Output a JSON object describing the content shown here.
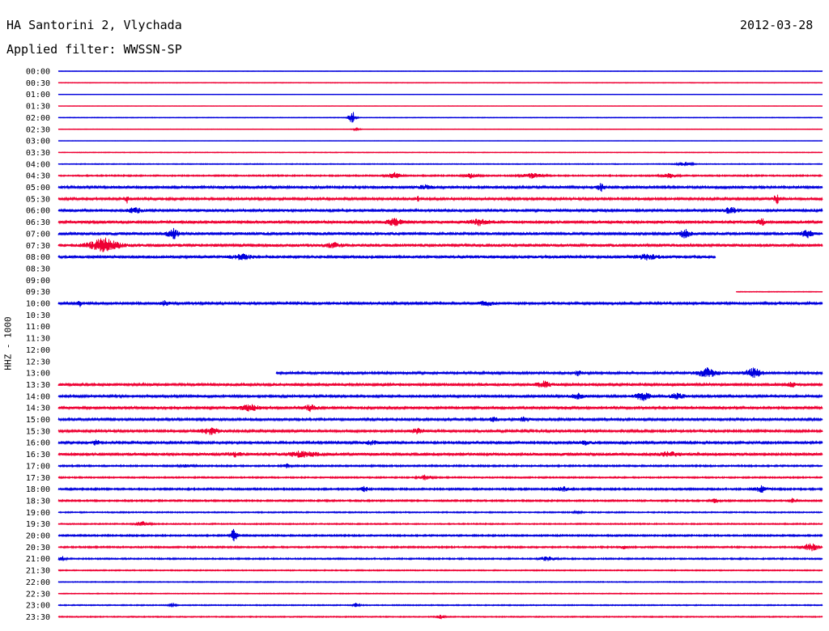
{
  "header": {
    "station": "HA Santorini 2, Vlychada",
    "date": "2012-03-28",
    "filter": "Applied filter: WWSSN-SP"
  },
  "channel_label": "HHZ - 1000",
  "colors": {
    "even_hour": "#0000dd",
    "half_hour": "#ee0033",
    "text": "#000000"
  },
  "chart_data": {
    "type": "line",
    "subtype": "helicorder",
    "x_span_minutes": 30,
    "grid": false,
    "rows": [
      {
        "label": "00:00",
        "amplitude": 0.25
      },
      {
        "label": "00:30",
        "amplitude": 0.35
      },
      {
        "label": "01:00",
        "amplitude": 0.2
      },
      {
        "label": "01:30",
        "amplitude": 0.2
      },
      {
        "label": "02:00",
        "amplitude": 0.35,
        "events": [
          {
            "pos": 0.385,
            "amp": 9,
            "w": 0.01
          }
        ]
      },
      {
        "label": "02:30",
        "amplitude": 0.3,
        "events": [
          {
            "pos": 0.39,
            "amp": 2,
            "w": 0.01
          }
        ]
      },
      {
        "label": "03:00",
        "amplitude": 0.2
      },
      {
        "label": "03:30",
        "amplitude": 0.4
      },
      {
        "label": "04:00",
        "amplitude": 0.5,
        "events": [
          {
            "pos": 0.82,
            "amp": 2.5,
            "w": 0.02
          }
        ]
      },
      {
        "label": "04:30",
        "amplitude": 0.8,
        "events": [
          {
            "pos": 0.44,
            "amp": 4,
            "w": 0.02
          },
          {
            "pos": 0.54,
            "amp": 3,
            "w": 0.02
          },
          {
            "pos": 0.62,
            "amp": 3,
            "w": 0.03
          },
          {
            "pos": 0.8,
            "amp": 3,
            "w": 0.02
          }
        ]
      },
      {
        "label": "05:00",
        "amplitude": 1.4,
        "events": [
          {
            "pos": 0.71,
            "amp": 5,
            "w": 0.01
          },
          {
            "pos": 0.48,
            "amp": 2.5,
            "w": 0.02
          }
        ]
      },
      {
        "label": "05:30",
        "amplitude": 1.3,
        "events": [
          {
            "pos": 0.09,
            "amp": 5,
            "w": 0.004
          },
          {
            "pos": 0.47,
            "amp": 4,
            "w": 0.005
          },
          {
            "pos": 0.94,
            "amp": 6,
            "w": 0.01
          }
        ]
      },
      {
        "label": "06:00",
        "amplitude": 1.5,
        "events": [
          {
            "pos": 0.1,
            "amp": 4,
            "w": 0.02
          },
          {
            "pos": 0.88,
            "amp": 4,
            "w": 0.02
          }
        ]
      },
      {
        "label": "06:30",
        "amplitude": 1.6,
        "events": [
          {
            "pos": 0.44,
            "amp": 5,
            "w": 0.02
          },
          {
            "pos": 0.55,
            "amp": 4,
            "w": 0.03
          },
          {
            "pos": 0.92,
            "amp": 5,
            "w": 0.01
          }
        ]
      },
      {
        "label": "07:00",
        "amplitude": 1.7,
        "events": [
          {
            "pos": 0.15,
            "amp": 7,
            "w": 0.015
          },
          {
            "pos": 0.82,
            "amp": 5,
            "w": 0.015
          },
          {
            "pos": 0.98,
            "amp": 5,
            "w": 0.015
          }
        ]
      },
      {
        "label": "07:30",
        "amplitude": 1.8,
        "events": [
          {
            "pos": 0.06,
            "amp": 9,
            "w": 0.04
          },
          {
            "pos": 0.36,
            "amp": 3,
            "w": 0.02
          }
        ]
      },
      {
        "label": "08:00",
        "amplitude": 1.7,
        "end": 0.86,
        "events": [
          {
            "pos": 0.24,
            "amp": 3,
            "w": 0.03
          },
          {
            "pos": 0.77,
            "amp": 3,
            "w": 0.03
          }
        ]
      },
      {
        "label": "08:30",
        "amplitude": 0,
        "start": 0,
        "end": 0
      },
      {
        "label": "09:00",
        "amplitude": 0,
        "start": 0,
        "end": 0
      },
      {
        "label": "09:30",
        "amplitude": 0.4,
        "start": 0.887
      },
      {
        "label": "10:00",
        "amplitude": 1.4,
        "events": [
          {
            "pos": 0.028,
            "amp": 6,
            "w": 0.005
          },
          {
            "pos": 0.14,
            "amp": 4,
            "w": 0.01
          },
          {
            "pos": 0.56,
            "amp": 3,
            "w": 0.02
          }
        ]
      },
      {
        "label": "10:30",
        "amplitude": 0,
        "start": 0,
        "end": 0
      },
      {
        "label": "11:00",
        "amplitude": 0,
        "start": 0,
        "end": 0
      },
      {
        "label": "11:30",
        "amplitude": 0,
        "start": 0,
        "end": 0
      },
      {
        "label": "12:00",
        "amplitude": 0,
        "start": 0,
        "end": 0
      },
      {
        "label": "12:30",
        "amplitude": 0,
        "start": 0,
        "end": 0
      },
      {
        "label": "13:00",
        "amplitude": 1.4,
        "start": 0.285,
        "events": [
          {
            "pos": 0.85,
            "amp": 6,
            "w": 0.03
          },
          {
            "pos": 0.91,
            "amp": 6,
            "w": 0.025
          },
          {
            "pos": 0.68,
            "amp": 3,
            "w": 0.01
          }
        ]
      },
      {
        "label": "13:30",
        "amplitude": 1.5,
        "events": [
          {
            "pos": 0.635,
            "amp": 4,
            "w": 0.02
          },
          {
            "pos": 0.96,
            "amp": 4,
            "w": 0.01
          }
        ]
      },
      {
        "label": "14:00",
        "amplitude": 1.4,
        "events": [
          {
            "pos": 0.765,
            "amp": 6,
            "w": 0.02
          },
          {
            "pos": 0.81,
            "amp": 4,
            "w": 0.02
          },
          {
            "pos": 0.68,
            "amp": 3,
            "w": 0.02
          }
        ]
      },
      {
        "label": "14:30",
        "amplitude": 1.4,
        "events": [
          {
            "pos": 0.25,
            "amp": 4,
            "w": 0.03
          },
          {
            "pos": 0.33,
            "amp": 4,
            "w": 0.02
          }
        ]
      },
      {
        "label": "15:00",
        "amplitude": 1.3,
        "events": [
          {
            "pos": 0.57,
            "amp": 4,
            "w": 0.01
          },
          {
            "pos": 0.61,
            "amp": 3,
            "w": 0.015
          }
        ]
      },
      {
        "label": "15:30",
        "amplitude": 1.3,
        "events": [
          {
            "pos": 0.2,
            "amp": 4,
            "w": 0.03
          },
          {
            "pos": 0.47,
            "amp": 3,
            "w": 0.02
          }
        ]
      },
      {
        "label": "16:00",
        "amplitude": 1.3,
        "events": [
          {
            "pos": 0.05,
            "amp": 4,
            "w": 0.01
          },
          {
            "pos": 0.41,
            "amp": 3,
            "w": 0.02
          },
          {
            "pos": 0.69,
            "amp": 3,
            "w": 0.02
          }
        ]
      },
      {
        "label": "16:30",
        "amplitude": 1.6,
        "events": [
          {
            "pos": 0.23,
            "amp": 3,
            "w": 0.02
          },
          {
            "pos": 0.32,
            "amp": 4,
            "w": 0.04
          },
          {
            "pos": 0.8,
            "amp": 3,
            "w": 0.03
          }
        ]
      },
      {
        "label": "17:00",
        "amplitude": 0.9,
        "events": [
          {
            "pos": 0.3,
            "amp": 3,
            "w": 0.01
          },
          {
            "pos": 0.17,
            "amp": 2,
            "w": 0.02
          }
        ]
      },
      {
        "label": "17:30",
        "amplitude": 0.8,
        "events": [
          {
            "pos": 0.48,
            "amp": 3,
            "w": 0.02
          }
        ]
      },
      {
        "label": "18:00",
        "amplitude": 1.0,
        "events": [
          {
            "pos": 0.4,
            "amp": 5,
            "w": 0.01
          },
          {
            "pos": 0.66,
            "amp": 3,
            "w": 0.02
          },
          {
            "pos": 0.92,
            "amp": 4,
            "w": 0.02
          }
        ]
      },
      {
        "label": "18:30",
        "amplitude": 0.9,
        "events": [
          {
            "pos": 0.86,
            "amp": 3,
            "w": 0.01
          },
          {
            "pos": 0.96,
            "amp": 3,
            "w": 0.01
          }
        ]
      },
      {
        "label": "19:00",
        "amplitude": 0.7,
        "events": [
          {
            "pos": 0.68,
            "amp": 2,
            "w": 0.01
          }
        ]
      },
      {
        "label": "19:30",
        "amplitude": 0.7,
        "events": [
          {
            "pos": 0.11,
            "amp": 3,
            "w": 0.02
          }
        ]
      },
      {
        "label": "20:00",
        "amplitude": 0.9,
        "events": [
          {
            "pos": 0.23,
            "amp": 12,
            "w": 0.008
          }
        ]
      },
      {
        "label": "20:30",
        "amplitude": 0.9,
        "events": [
          {
            "pos": 0.985,
            "amp": 6,
            "w": 0.02
          },
          {
            "pos": 0.74,
            "amp": 2,
            "w": 0.01
          }
        ]
      },
      {
        "label": "21:00",
        "amplitude": 0.8,
        "events": [
          {
            "pos": 0.005,
            "amp": 3,
            "w": 0.01
          },
          {
            "pos": 0.64,
            "amp": 3,
            "w": 0.02
          }
        ]
      },
      {
        "label": "21:30",
        "amplitude": 0.6
      },
      {
        "label": "22:00",
        "amplitude": 0.5
      },
      {
        "label": "22:30",
        "amplitude": 0.5
      },
      {
        "label": "23:00",
        "amplitude": 0.6,
        "events": [
          {
            "pos": 0.15,
            "amp": 3,
            "w": 0.01
          },
          {
            "pos": 0.39,
            "amp": 3,
            "w": 0.01
          }
        ]
      },
      {
        "label": "23:30",
        "amplitude": 0.6,
        "events": [
          {
            "pos": 0.5,
            "amp": 3,
            "w": 0.01
          }
        ]
      }
    ]
  }
}
